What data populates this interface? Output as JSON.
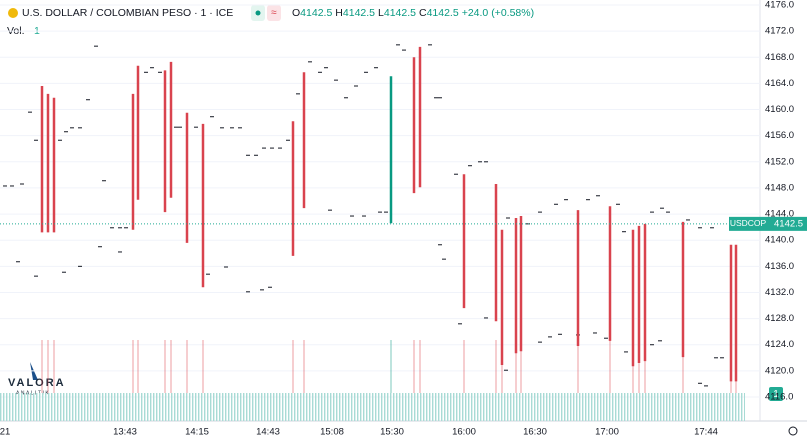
{
  "chart_data": {
    "type": "range-bar",
    "title": "U.S. DOLLAR / COLOMBIAN PESO · 1 · ICE",
    "ohlc": [
      {
        "label": "O",
        "value": "4142.5"
      },
      {
        "label": "H",
        "value": "4142.5"
      },
      {
        "label": "L",
        "value": "4142.5"
      },
      {
        "label": "C",
        "value": "4142.5"
      }
    ],
    "change": "+24.0 (+0.58%)",
    "volume_label": "Vol.",
    "volume_value": "1",
    "volume_axis_label": "1",
    "symbol": "USDCOP",
    "last_price": 4142.5,
    "logo": "VALORA",
    "logo_sub": "ANALITIK",
    "time_labels": [
      "21",
      "13:43",
      "14:15",
      "14:43",
      "15:08",
      "15:30",
      "16:00",
      "16:30",
      "17:00",
      "17:44"
    ],
    "ylim": [
      4116,
      4176
    ],
    "yticks": [
      {
        "value": 4116,
        "label": "4116.0"
      },
      {
        "value": 4120,
        "label": "4120.0"
      },
      {
        "value": 4124,
        "label": "4124.0"
      },
      {
        "value": 4128,
        "label": "4128.0"
      },
      {
        "value": 4132,
        "label": "4132.0"
      },
      {
        "value": 4136,
        "label": "4136.0"
      },
      {
        "value": 4140,
        "label": "4140.0"
      },
      {
        "value": 4144,
        "label": "4144.0"
      },
      {
        "value": 4148,
        "label": "4148.0"
      },
      {
        "value": 4152,
        "label": "4152.0"
      },
      {
        "value": 4156,
        "label": "4156.0"
      },
      {
        "value": 4160,
        "label": "4160.0"
      },
      {
        "value": 4164,
        "label": "4164.0"
      },
      {
        "value": 4168,
        "label": "4168.0"
      },
      {
        "value": 4172,
        "label": "4172.0"
      },
      {
        "value": 4176,
        "label": "4176.0"
      }
    ],
    "grid": true,
    "bars": {
      "high": [
        4163.6,
        4162.4,
        4161.8,
        4162.4,
        4166.7,
        4166.0,
        4167.3,
        4159.5,
        4157.8,
        4158.2,
        4165.7,
        4165.1,
        4168.0,
        4169.6,
        4150.1,
        4148.6,
        4141.6,
        4143.4,
        4143.7,
        4144.6,
        4145.2,
        4141.6,
        4142.2,
        4142.5,
        4142.8,
        4139.3,
        4139.3
      ],
      "low": [
        4141.2,
        4141.2,
        4141.2,
        4141.6,
        4146.2,
        4144.3,
        4146.5,
        4139.6,
        4132.8,
        4137.6,
        4144.9,
        4142.6,
        4147.2,
        4148.1,
        4129.6,
        4127.6,
        4120.9,
        4122.7,
        4123.0,
        4123.8,
        4124.6,
        4120.7,
        4121.2,
        4121.5,
        4122.1,
        4118.4,
        4118.4
      ],
      "colors": [
        "#d9434e",
        "#d9434e",
        "#d9434e",
        "#d9434e",
        "#d9434e",
        "#d9434e",
        "#d9434e",
        "#d9434e",
        "#d9434e",
        "#d9434e",
        "#d9434e",
        "#089981",
        "#d9434e",
        "#d9434e",
        "#d9434e",
        "#d9434e",
        "#d9434e",
        "#d9434e",
        "#d9434e",
        "#d9434e",
        "#d9434e",
        "#d9434e",
        "#d9434e",
        "#d9434e",
        "#d9434e",
        "#d9434e",
        "#d9434e"
      ]
    },
    "dashes": [
      4148.3,
      4148.3,
      4148.6,
      4159.6,
      4155.3,
      4155.3,
      4156.6,
      4157.2,
      4157.2,
      4161.5,
      4169.7,
      4149.1,
      4141.9,
      4141.9,
      4141.9,
      4165.7,
      4166.4,
      4165.7,
      4157.3,
      4157.3,
      4157.3,
      4158.9,
      4157.2,
      4157.2,
      4157.2,
      4153.0,
      4153.0,
      4154.1,
      4154.1,
      4154.1,
      4155.3,
      4162.4,
      4167.3,
      4165.7,
      4166.4,
      4164.5,
      4161.8,
      4163.6,
      4165.7,
      4166.4,
      4144.3,
      4144.3,
      4169.9,
      4169.1,
      4169.9,
      4161.8,
      4161.8,
      4150.1,
      4151.4,
      4152.0,
      4152.0,
      4143.4,
      4142.5,
      4144.3,
      4145.5,
      4146.2,
      4146.2,
      4146.8,
      4145.5,
      4141.3,
      4144.3,
      4144.9,
      4144.3,
      4143.1,
      4141.9,
      4141.9,
      4122.0,
      4122.0,
      4136.7,
      4134.5,
      4135.1,
      4136.0,
      4139.0,
      4138.2,
      4134.8,
      4135.9,
      4132.1,
      4132.4,
      4132.8,
      4144.6,
      4143.7,
      4143.7,
      4139.3,
      4137.1,
      4127.2,
      4128.1,
      4120.1,
      4124.4,
      4125.2,
      4125.6,
      4125.5,
      4125.8,
      4125.0,
      4122.9,
      4124.0,
      4124.6,
      4118.1,
      4117.7
    ],
    "dash_color": "#131722",
    "last_price_color": "#22ab94"
  }
}
